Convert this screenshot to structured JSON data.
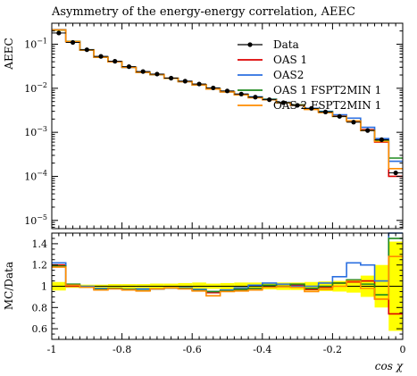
{
  "chart_data": [
    {
      "type": "line",
      "title": "Asymmetry of the energy-energy correlation, AEEC",
      "xlabel": "",
      "ylabel": "AEEC",
      "y_scale": "log",
      "ylim": [
        6.5e-06,
        0.3
      ],
      "xlim": [
        -1,
        0
      ],
      "grid": false,
      "legend_position": "top-right",
      "y_ticks": [
        {
          "v": 0.1,
          "m": "10",
          "e": "−1"
        },
        {
          "v": 0.01,
          "m": "10",
          "e": "−2"
        },
        {
          "v": 0.001,
          "m": "10",
          "e": "−3"
        },
        {
          "v": 0.0001,
          "m": "10",
          "e": "−4"
        },
        {
          "v": 1e-05,
          "m": "10",
          "e": "−5"
        }
      ],
      "bin_edges": [
        -1.0,
        -0.96,
        -0.92,
        -0.88,
        -0.84,
        -0.8,
        -0.76,
        -0.72,
        -0.68,
        -0.64,
        -0.6,
        -0.56,
        -0.52,
        -0.48,
        -0.44,
        -0.4,
        -0.36,
        -0.32,
        -0.28,
        -0.24,
        -0.2,
        -0.16,
        -0.12,
        -0.08,
        -0.04,
        0.0
      ],
      "series": [
        {
          "name": "Data",
          "kind": "points",
          "color": "#000000",
          "values": [
            0.18,
            0.11,
            0.075,
            0.053,
            0.041,
            0.031,
            0.024,
            0.021,
            0.017,
            0.0145,
            0.0125,
            0.0102,
            0.0087,
            0.0074,
            0.0063,
            0.0055,
            0.0047,
            0.0041,
            0.0035,
            0.0029,
            0.0023,
            0.0017,
            0.0011,
            0.00068,
            0.00012
          ]
        },
        {
          "name": "OAS 1",
          "kind": "step",
          "color": "#dd0000",
          "values": [
            0.21,
            0.115,
            0.074,
            0.051,
            0.04,
            0.03,
            0.023,
            0.0205,
            0.0168,
            0.0142,
            0.012,
            0.0096,
            0.0083,
            0.0072,
            0.0062,
            0.0056,
            0.0047,
            0.0042,
            0.0034,
            0.0029,
            0.0024,
            0.0018,
            0.00115,
            0.0006,
            0.0001
          ]
        },
        {
          "name": "OAS2",
          "kind": "step",
          "color": "#2b6fe0",
          "values": [
            0.215,
            0.116,
            0.075,
            0.052,
            0.04,
            0.03,
            0.0235,
            0.0205,
            0.0168,
            0.0143,
            0.0121,
            0.0097,
            0.0084,
            0.0073,
            0.0064,
            0.0057,
            0.0048,
            0.0041,
            0.0035,
            0.003,
            0.0025,
            0.0021,
            0.0013,
            0.00072,
            0.00022
          ]
        },
        {
          "name": "OAS 1 FSPT2MIN 1",
          "kind": "step",
          "color": "#1e8a1e",
          "values": [
            0.21,
            0.116,
            0.074,
            0.051,
            0.04,
            0.03,
            0.023,
            0.0205,
            0.0168,
            0.0142,
            0.012,
            0.0097,
            0.0083,
            0.0072,
            0.0062,
            0.0056,
            0.0047,
            0.0042,
            0.0034,
            0.0029,
            0.0023,
            0.0018,
            0.0011,
            0.00065,
            0.00026
          ]
        },
        {
          "name": "OAS 2 FSPT2MIN 1",
          "kind": "step",
          "color": "#ff8c00",
          "values": [
            0.212,
            0.115,
            0.074,
            0.051,
            0.04,
            0.03,
            0.023,
            0.0205,
            0.0168,
            0.0142,
            0.012,
            0.0096,
            0.0083,
            0.0071,
            0.0061,
            0.0055,
            0.0047,
            0.0041,
            0.0033,
            0.0028,
            0.0023,
            0.0018,
            0.0011,
            0.00062,
            0.00015
          ]
        }
      ]
    },
    {
      "type": "line",
      "title": "",
      "xlabel": "cos χ",
      "ylabel": "MC/Data",
      "ylim": [
        0.5,
        1.5
      ],
      "xlim": [
        -1,
        0
      ],
      "grid": false,
      "x_ticks": [
        "-1",
        "-0.8",
        "-0.6",
        "-0.4",
        "-0.2",
        "0"
      ],
      "x_tick_values": [
        -1,
        -0.8,
        -0.6,
        -0.4,
        -0.2,
        0
      ],
      "y_ticks": [
        "0.6",
        "0.8",
        "1",
        "1.2",
        "1.4"
      ],
      "y_tick_values": [
        0.6,
        0.8,
        1.0,
        1.2,
        1.4
      ],
      "band_color": "#ffff00",
      "band_halfwidth": [
        0.04,
        0.015,
        0.015,
        0.015,
        0.02,
        0.02,
        0.02,
        0.025,
        0.025,
        0.03,
        0.035,
        0.025,
        0.03,
        0.035,
        0.035,
        0.03,
        0.035,
        0.035,
        0.04,
        0.045,
        0.05,
        0.06,
        0.1,
        0.2,
        0.42
      ],
      "series": [
        {
          "name": "OAS 1",
          "color": "#dd0000",
          "values": [
            1.2,
            1.0,
            0.99,
            0.97,
            0.98,
            0.97,
            0.96,
            0.975,
            0.985,
            0.98,
            0.96,
            0.94,
            0.955,
            0.97,
            0.98,
            1.01,
            1.0,
            1.01,
            0.97,
            0.99,
            1.03,
            1.04,
            1.05,
            0.88,
            0.74
          ]
        },
        {
          "name": "OAS2",
          "color": "#2b6fe0",
          "values": [
            1.22,
            1.01,
            1.0,
            0.98,
            0.98,
            0.97,
            0.975,
            0.975,
            0.985,
            0.985,
            0.97,
            0.95,
            0.965,
            0.985,
            1.01,
            1.03,
            1.02,
            1.0,
            1.0,
            1.03,
            1.09,
            1.22,
            1.2,
            1.05,
            1.5
          ]
        },
        {
          "name": "OAS 1 FSPT2MIN 1",
          "color": "#1e8a1e",
          "values": [
            1.19,
            1.02,
            0.99,
            0.97,
            0.98,
            0.97,
            0.96,
            0.975,
            0.985,
            0.98,
            0.96,
            0.95,
            0.955,
            0.97,
            0.98,
            1.01,
            1.0,
            1.02,
            0.98,
            1.0,
            1.03,
            1.06,
            1.02,
            0.92,
            1.45
          ]
        },
        {
          "name": "OAS 2 FSPT2MIN 1",
          "color": "#ff8c00",
          "values": [
            1.18,
            1.01,
            0.99,
            0.965,
            0.975,
            0.965,
            0.955,
            0.975,
            0.985,
            0.975,
            0.955,
            0.91,
            0.95,
            0.955,
            0.965,
            0.99,
            0.995,
            0.99,
            0.95,
            0.97,
            1.0,
            1.05,
            0.98,
            0.88,
            1.28
          ]
        }
      ]
    }
  ]
}
